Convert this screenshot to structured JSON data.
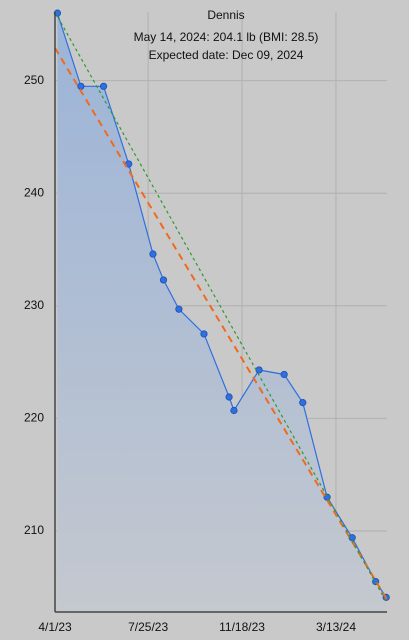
{
  "chart_data": {
    "type": "line",
    "title": "Dennis",
    "subtitle": "May 14, 2024: 204.1 lb (BMI: 28.5)",
    "annotation": "Expected date: Dec 09, 2024",
    "x": [
      "2023-04-04",
      "2023-05-03",
      "2023-05-31",
      "2023-07-01",
      "2023-07-31",
      "2023-08-13",
      "2023-09-01",
      "2023-10-02",
      "2023-11-02",
      "2023-11-08",
      "2023-12-09",
      "2024-01-09",
      "2024-02-01",
      "2024-03-02",
      "2024-04-02",
      "2024-05-01",
      "2024-05-14"
    ],
    "series": [
      {
        "color": "#2f6fe0",
        "values": [
          256.0,
          249.5,
          249.5,
          242.6,
          234.6,
          232.3,
          229.7,
          227.5,
          221.9,
          220.7,
          224.3,
          223.9,
          221.4,
          213.0,
          209.4,
          205.5,
          204.1
        ]
      }
    ],
    "trend_lines": [
      {
        "color": "#f06a1e",
        "style": "dashed",
        "x": [
          "2023-04-01",
          "2024-05-15"
        ],
        "values": [
          252.9,
          203.9
        ]
      },
      {
        "color": "#2e9a2e",
        "style": "dotted",
        "x": [
          "2023-04-01",
          "2024-05-15"
        ],
        "values": [
          256.1,
          203.6
        ]
      }
    ],
    "xlim": [
      "2023-04-01",
      "2024-05-15"
    ],
    "xticks": [
      {
        "value": "2023-04-01",
        "label": "4/1/23"
      },
      {
        "value": "2023-07-25",
        "label": "7/25/23"
      },
      {
        "value": "2023-11-18",
        "label": "11/18/23"
      },
      {
        "value": "2024-03-13",
        "label": "3/13/24"
      }
    ],
    "ylim": [
      202.8,
      256.1
    ],
    "yticks": [
      210,
      220,
      230,
      240,
      250
    ],
    "grid": true
  }
}
